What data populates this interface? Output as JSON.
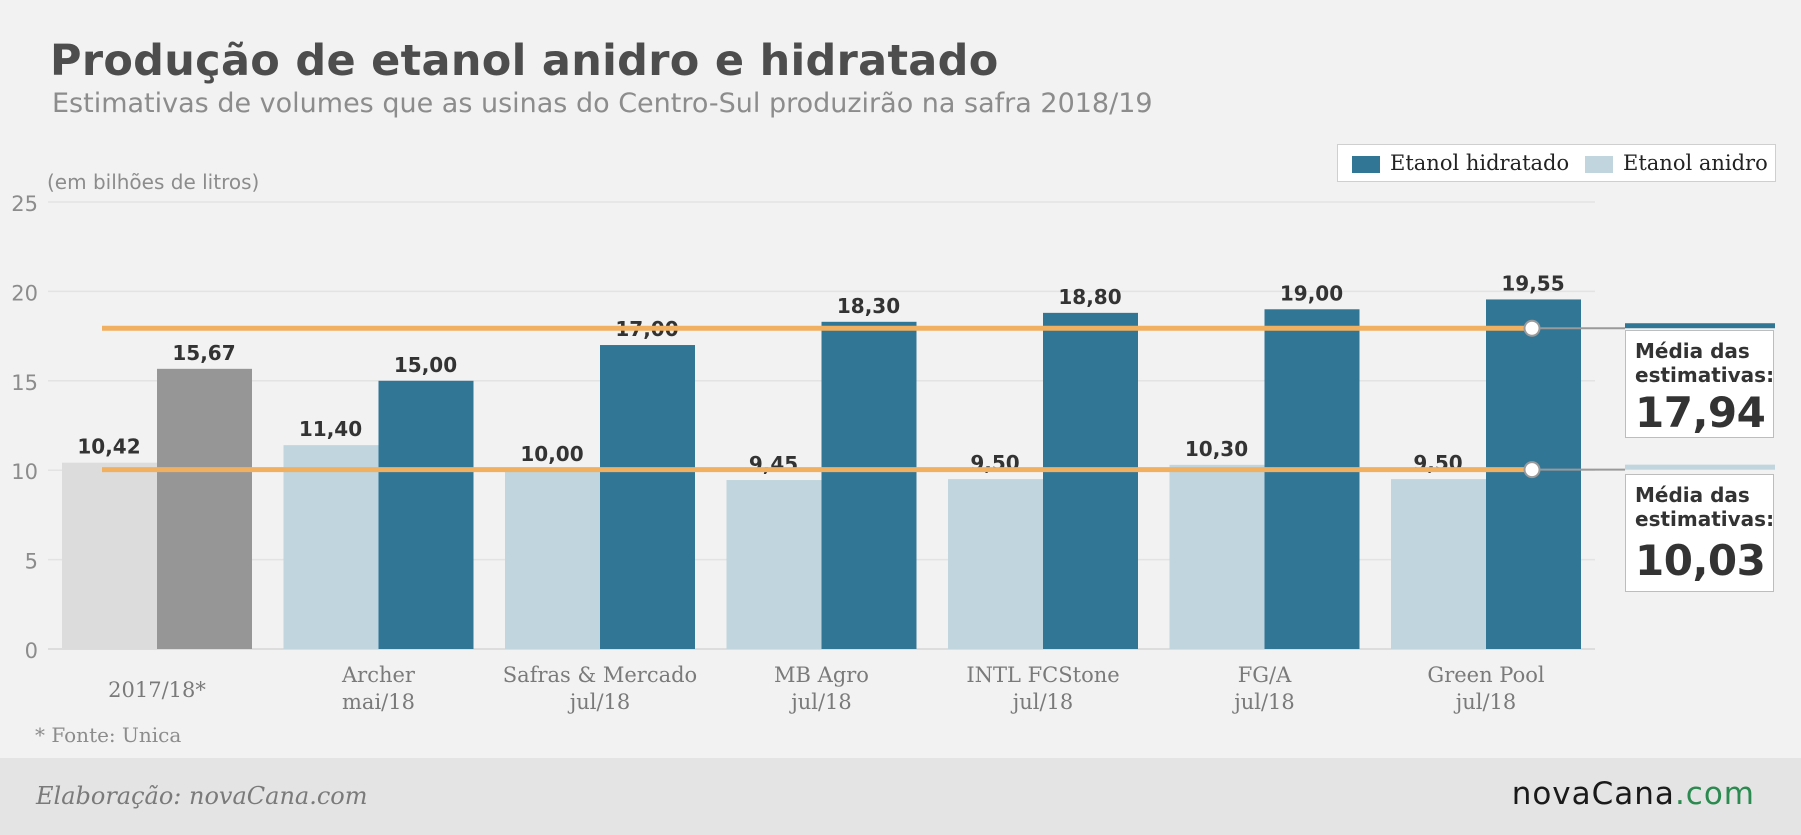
{
  "header": {
    "title": "Produção de etanol anidro e hidratado",
    "subtitle": "Estimativas de volumes que as usinas do Centro-Sul produzirão na safra 2018/19",
    "unit_note": "(em bilhões de litros)"
  },
  "colors": {
    "hidratado": "#327696",
    "anidro": "#c0d5dd",
    "ref_hidratado": "#969696",
    "ref_anidro": "#dcdcdc",
    "average_line": "#f0b060",
    "grid": "#e3e3e3"
  },
  "chart_data": {
    "type": "bar",
    "title": "Produção de etanol anidro e hidratado",
    "subtitle": "Estimativas de volumes que as usinas do Centro-Sul produzirão na safra 2018/19",
    "ylabel": "(em bilhões de litros)",
    "ylim": [
      0,
      25
    ],
    "yticks": [
      "0",
      "5",
      "10",
      "15",
      "20",
      "25"
    ],
    "grid": true,
    "legend_position": "top-right",
    "categories": [
      [
        "2017/18*"
      ],
      [
        "Archer",
        "mai/18"
      ],
      [
        "Safras & Mercado",
        "jul/18"
      ],
      [
        "MB Agro",
        "jul/18"
      ],
      [
        "INTL FCStone",
        "jul/18"
      ],
      [
        "FG/A",
        "jul/18"
      ],
      [
        "Green Pool",
        "jul/18"
      ]
    ],
    "series": [
      {
        "name": "Etanol anidro",
        "values": [
          10.42,
          11.4,
          10.0,
          9.45,
          9.5,
          10.3,
          9.5
        ],
        "labels": [
          "10,42",
          "11,40",
          "10,00",
          "9,45",
          "9,50",
          "10,30",
          "9,50"
        ]
      },
      {
        "name": "Etanol hidratado",
        "values": [
          15.67,
          15.0,
          17.0,
          18.3,
          18.8,
          19.0,
          19.55
        ],
        "labels": [
          "15,67",
          "15,00",
          "17,00",
          "18,30",
          "18,80",
          "19,00",
          "19,55"
        ]
      }
    ],
    "averages": [
      {
        "series": "Etanol hidratado",
        "value": 17.94,
        "label": "Média das estimativas:",
        "display": "17,94"
      },
      {
        "series": "Etanol anidro",
        "value": 10.03,
        "label": "Média das estimativas:",
        "display": "10,03"
      }
    ]
  },
  "footnote": "* Fonte: Unica",
  "footer": {
    "credit": "Elaboração: novaCana.com",
    "brand_main": "novaCana",
    "brand_suffix": ".com"
  }
}
